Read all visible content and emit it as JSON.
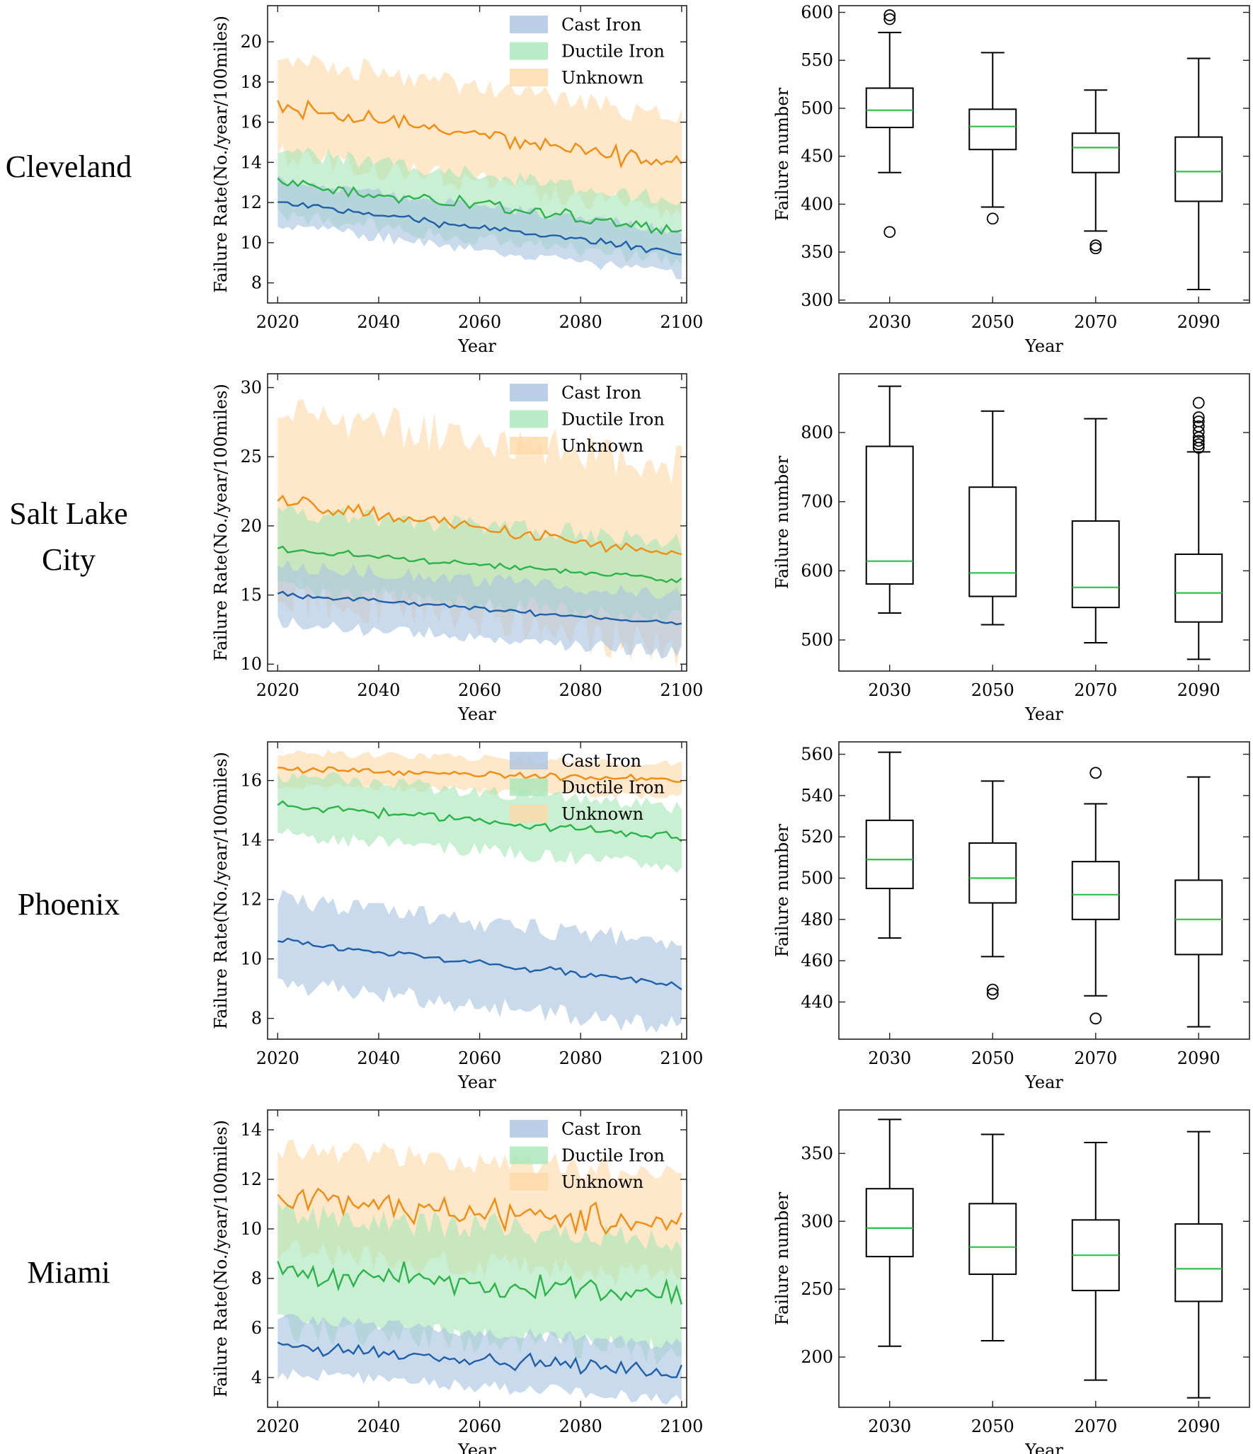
{
  "colors": {
    "cast_iron": "#1f5fa8",
    "cast_iron_band": "#aac4e2",
    "ductile_iron": "#2bb34a",
    "ductile_iron_band": "#a8e6b8",
    "unknown": "#f28c10",
    "unknown_band": "#ffd9a8",
    "median": "#2fbf4a",
    "box": "#000000"
  },
  "legend": [
    "Cast Iron",
    "Ductile Iron",
    "Unknown"
  ],
  "chart_data": [
    {
      "type": "line",
      "city": "Cleveland",
      "xlabel": "Year",
      "ylabel": "Failure Rate(No./year/100miles)",
      "xlim": [
        2018,
        2101
      ],
      "ylim": [
        7,
        21.8
      ],
      "xticks": [
        2020,
        2040,
        2060,
        2080,
        2100
      ],
      "yticks": [
        8,
        10,
        12,
        14,
        16,
        18,
        20
      ],
      "legend_loc": "upper-right",
      "series": [
        {
          "name": "Cast Iron",
          "start": 12.0,
          "end": 9.5,
          "noise": 0.18,
          "band": 1.1
        },
        {
          "name": "Ductile Iron",
          "start": 13.0,
          "end": 10.6,
          "noise": 0.3,
          "band": 1.6
        },
        {
          "name": "Unknown",
          "start": 16.8,
          "end": 13.9,
          "noise": 0.35,
          "band": 2.4
        }
      ]
    },
    {
      "type": "box",
      "city": "Cleveland",
      "xlabel": "Year",
      "ylabel": "Failure number",
      "categories": [
        "2030",
        "2050",
        "2070",
        "2090"
      ],
      "ylim": [
        297,
        607
      ],
      "yticks": [
        300,
        350,
        400,
        450,
        500,
        550,
        600
      ],
      "boxes": [
        {
          "min": 433,
          "q1": 480,
          "median": 498,
          "q3": 521,
          "max": 579,
          "outliers": [
            371,
            593,
            597
          ]
        },
        {
          "min": 397,
          "q1": 457,
          "median": 481,
          "q3": 499,
          "max": 558,
          "outliers": [
            385
          ]
        },
        {
          "min": 372,
          "q1": 433,
          "median": 459,
          "q3": 474,
          "max": 519,
          "outliers": [
            354,
            357
          ]
        },
        {
          "min": 311,
          "q1": 403,
          "median": 434,
          "q3": 470,
          "max": 552,
          "outliers": []
        }
      ]
    },
    {
      "type": "line",
      "city": "Salt Lake City",
      "xlabel": "Year",
      "ylabel": "Failure Rate(No./year/100miles)",
      "xlim": [
        2018,
        2101
      ],
      "ylim": [
        9.5,
        31
      ],
      "xticks": [
        2020,
        2040,
        2060,
        2080,
        2100
      ],
      "yticks": [
        10,
        15,
        20,
        25,
        30
      ],
      "legend_loc": "upper-right",
      "series": [
        {
          "name": "Cast Iron",
          "start": 15.1,
          "end": 12.9,
          "noise": 0.15,
          "band": 2.1
        },
        {
          "name": "Ductile Iron",
          "start": 18.3,
          "end": 16.1,
          "noise": 0.2,
          "band": 2.8
        },
        {
          "name": "Unknown",
          "start": 21.8,
          "end": 17.8,
          "noise": 0.45,
          "band": 6.5
        }
      ]
    },
    {
      "type": "box",
      "city": "Salt Lake City",
      "xlabel": "Year",
      "ylabel": "Failure number",
      "categories": [
        "2030",
        "2050",
        "2070",
        "2090"
      ],
      "ylim": [
        455,
        885
      ],
      "yticks": [
        500,
        600,
        700,
        800
      ],
      "boxes": [
        {
          "min": 539,
          "q1": 581,
          "median": 614,
          "q3": 780,
          "max": 867,
          "outliers": []
        },
        {
          "min": 522,
          "q1": 563,
          "median": 597,
          "q3": 721,
          "max": 831,
          "outliers": []
        },
        {
          "min": 496,
          "q1": 547,
          "median": 576,
          "q3": 672,
          "max": 820,
          "outliers": []
        },
        {
          "min": 472,
          "q1": 526,
          "median": 568,
          "q3": 624,
          "max": 772,
          "outliers": [
            778,
            783,
            788,
            793,
            801,
            809,
            816,
            822,
            843
          ]
        }
      ]
    },
    {
      "type": "line",
      "city": "Phoenix",
      "xlabel": "Year",
      "ylabel": "Failure Rate(No./year/100miles)",
      "xlim": [
        2018,
        2101
      ],
      "ylim": [
        7.3,
        17.3
      ],
      "xticks": [
        2020,
        2040,
        2060,
        2080,
        2100
      ],
      "yticks": [
        8,
        10,
        12,
        14,
        16
      ],
      "legend_loc": "upper-right",
      "series": [
        {
          "name": "Cast Iron",
          "start": 10.6,
          "end": 9.1,
          "noise": 0.1,
          "band": 1.4
        },
        {
          "name": "Ductile Iron",
          "start": 15.2,
          "end": 14.1,
          "noise": 0.15,
          "band": 1.0
        },
        {
          "name": "Unknown",
          "start": 16.4,
          "end": 16.0,
          "noise": 0.1,
          "band": 0.55
        }
      ]
    },
    {
      "type": "box",
      "city": "Phoenix",
      "xlabel": "Year",
      "ylabel": "Failure number",
      "categories": [
        "2030",
        "2050",
        "2070",
        "2090"
      ],
      "ylim": [
        422,
        566
      ],
      "yticks": [
        440,
        460,
        480,
        500,
        520,
        540,
        560
      ],
      "boxes": [
        {
          "min": 471,
          "q1": 495,
          "median": 509,
          "q3": 528,
          "max": 561,
          "outliers": []
        },
        {
          "min": 462,
          "q1": 488,
          "median": 500,
          "q3": 517,
          "max": 547,
          "outliers": [
            444,
            446
          ]
        },
        {
          "min": 443,
          "q1": 480,
          "median": 492,
          "q3": 508,
          "max": 536,
          "outliers": [
            432,
            551
          ]
        },
        {
          "min": 428,
          "q1": 463,
          "median": 480,
          "q3": 499,
          "max": 549,
          "outliers": []
        }
      ]
    },
    {
      "type": "line",
      "city": "Miami",
      "xlabel": "Year",
      "ylabel": "Failure Rate(No./year/100miles)",
      "xlim": [
        2018,
        2101
      ],
      "ylim": [
        2.8,
        14.8
      ],
      "xticks": [
        2020,
        2040,
        2060,
        2080,
        2100
      ],
      "yticks": [
        4,
        6,
        8,
        10,
        12,
        14
      ],
      "legend_loc": "upper-right",
      "series": [
        {
          "name": "Cast Iron",
          "start": 5.3,
          "end": 4.2,
          "noise": 0.25,
          "band": 1.1
        },
        {
          "name": "Ductile Iron",
          "start": 8.3,
          "end": 7.3,
          "noise": 0.45,
          "band": 2.3
        },
        {
          "name": "Unknown",
          "start": 11.2,
          "end": 10.1,
          "noise": 0.5,
          "band": 2.1
        }
      ]
    },
    {
      "type": "box",
      "city": "Miami",
      "xlabel": "Year",
      "ylabel": "Failure number",
      "categories": [
        "2030",
        "2050",
        "2070",
        "2090"
      ],
      "ylim": [
        163,
        382
      ],
      "yticks": [
        200,
        250,
        300,
        350
      ],
      "boxes": [
        {
          "min": 208,
          "q1": 274,
          "median": 295,
          "q3": 324,
          "max": 375,
          "outliers": []
        },
        {
          "min": 212,
          "q1": 261,
          "median": 281,
          "q3": 313,
          "max": 364,
          "outliers": []
        },
        {
          "min": 183,
          "q1": 249,
          "median": 275,
          "q3": 301,
          "max": 358,
          "outliers": []
        },
        {
          "min": 170,
          "q1": 241,
          "median": 265,
          "q3": 298,
          "max": 366,
          "outliers": []
        }
      ]
    }
  ],
  "row_labels": [
    [
      "Cleveland"
    ],
    [
      "Salt Lake",
      "City"
    ],
    [
      "Phoenix"
    ],
    [
      "Miami"
    ]
  ]
}
